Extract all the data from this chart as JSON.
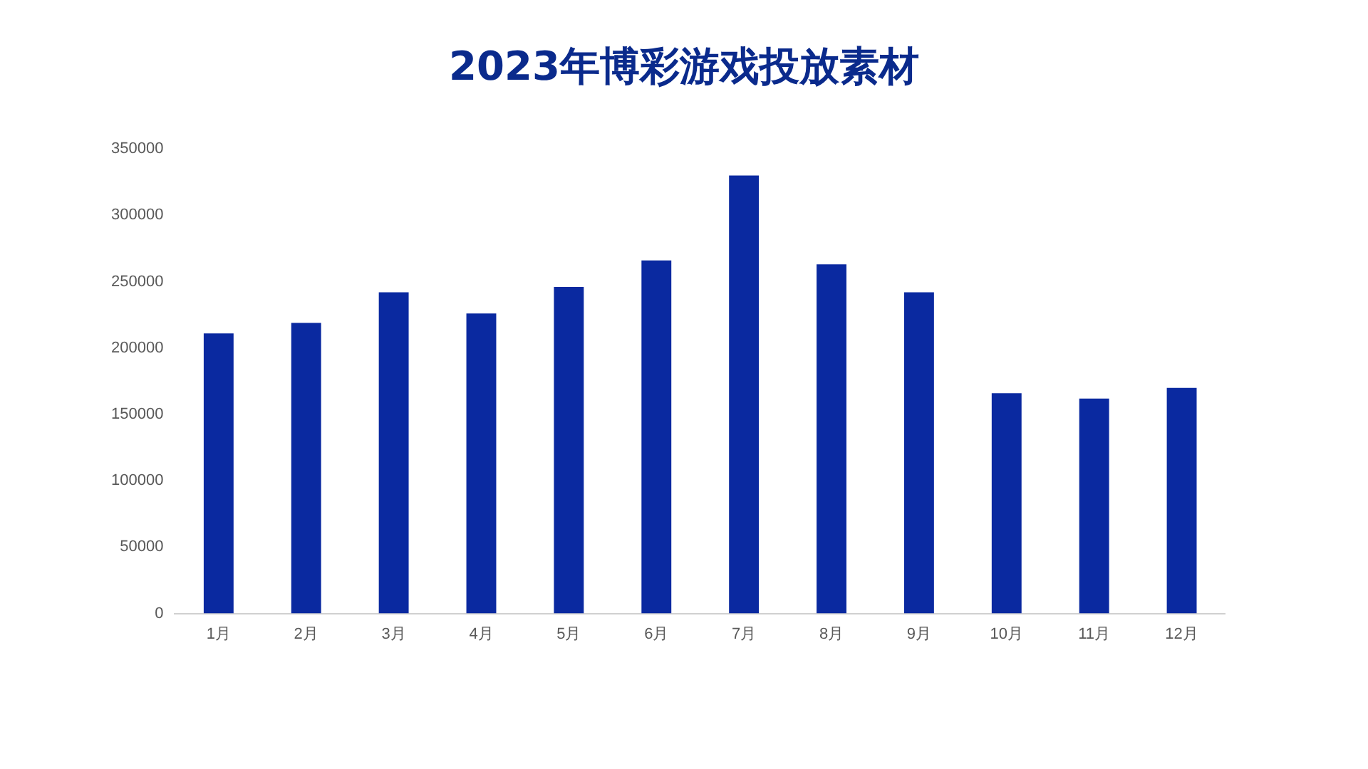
{
  "chart_data": {
    "type": "bar",
    "title": "2023年博彩游戏投放素材",
    "categories": [
      "1月",
      "2月",
      "3月",
      "4月",
      "5月",
      "6月",
      "7月",
      "8月",
      "9月",
      "10月",
      "11月",
      "12月"
    ],
    "values": [
      211000,
      219000,
      242000,
      226000,
      246000,
      266000,
      330000,
      263000,
      242000,
      166000,
      162000,
      170000
    ],
    "color": "#0a29a0",
    "ylim": [
      0,
      350000
    ],
    "yticks": [
      0,
      50000,
      100000,
      150000,
      200000,
      250000,
      300000,
      350000
    ],
    "grid": false
  }
}
